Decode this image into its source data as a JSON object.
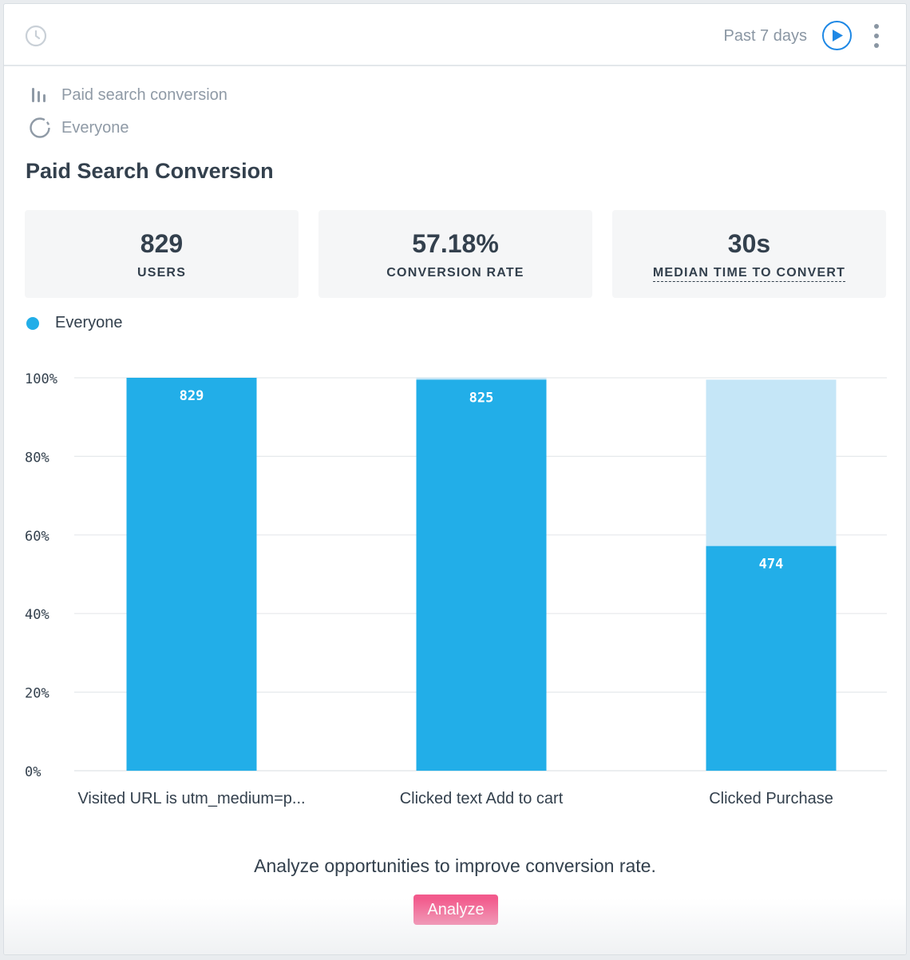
{
  "header": {
    "date_range": "Past 7 days",
    "icons": {
      "history": "clock-icon",
      "run": "play-icon",
      "more": "more-vertical-icon"
    }
  },
  "meta": {
    "chart_label": "Paid search conversion",
    "chart_icon": "bar-chart-icon",
    "segment_label": "Everyone",
    "segment_icon": "segment-circle-icon"
  },
  "title": "Paid Search Conversion",
  "stats": [
    {
      "value": "829",
      "label": "USERS"
    },
    {
      "value": "57.18%",
      "label": "CONVERSION RATE"
    },
    {
      "value": "30s",
      "label": "MEDIAN TIME TO CONVERT"
    }
  ],
  "legend": {
    "label": "Everyone",
    "color": "#22aee8"
  },
  "chart_data": {
    "type": "bar",
    "categories": [
      "Visited URL is utm_medium=p...",
      "Clicked text Add to cart",
      "Clicked Purchase"
    ],
    "series": [
      {
        "name": "Everyone",
        "values": [
          100,
          99.52,
          57.18
        ],
        "counts": [
          "829",
          "825",
          "474"
        ],
        "color": "#22aee8"
      }
    ],
    "dropoff_color": "#c5e6f7",
    "y_ticks": [
      "0%",
      "20%",
      "40%",
      "60%",
      "80%",
      "100%"
    ],
    "ylim": [
      0,
      100
    ],
    "grid": true
  },
  "footer": {
    "prompt": "Analyze opportunities to improve conversion rate.",
    "button_label": "Analyze",
    "button_color": "#f25a8c"
  }
}
